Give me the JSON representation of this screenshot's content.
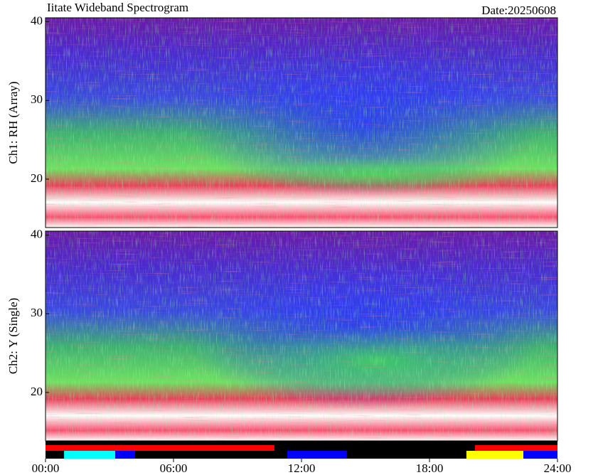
{
  "chart_data": {
    "type": "spectrogram",
    "title": "Iitate Wideband Spectrogram",
    "date": "Date:20250608",
    "xlim": [
      0,
      24
    ],
    "xticks": [
      {
        "value": 0,
        "label": "00:00"
      },
      {
        "value": 6,
        "label": "06:00"
      },
      {
        "value": 12,
        "label": "12:00"
      },
      {
        "value": 18,
        "label": "18:00"
      },
      {
        "value": 24,
        "label": "24:00"
      }
    ],
    "panels": [
      {
        "ylabel": "Ch1: RH (Array)",
        "ylim": [
          13.85,
          40.5
        ],
        "yticks": [
          20,
          30,
          40
        ]
      },
      {
        "ylabel": "Ch2: Y (Single)",
        "ylim": [
          13.85,
          40.5
        ],
        "yticks": [
          20,
          30,
          40
        ]
      }
    ],
    "status_bars": [
      {
        "segments": [
          {
            "start": 0,
            "end": 10.73,
            "color": "#ff0000"
          },
          {
            "start": 10.73,
            "end": 20.13,
            "color": "#000000"
          },
          {
            "start": 20.13,
            "end": 24,
            "color": "#ff0000"
          }
        ]
      },
      {
        "segments": [
          {
            "start": 0,
            "end": 0.87,
            "color": "#000000"
          },
          {
            "start": 0.87,
            "end": 3.27,
            "color": "#00ffff"
          },
          {
            "start": 3.27,
            "end": 4.2,
            "color": "#0000ff"
          },
          {
            "start": 4.2,
            "end": 11.33,
            "color": "#000000"
          },
          {
            "start": 11.33,
            "end": 14.13,
            "color": "#0000ff"
          },
          {
            "start": 14.13,
            "end": 19.73,
            "color": "#000000"
          },
          {
            "start": 19.73,
            "end": 22.4,
            "color": "#ffff00"
          },
          {
            "start": 22.4,
            "end": 24,
            "color": "#0000ff"
          }
        ]
      }
    ]
  }
}
